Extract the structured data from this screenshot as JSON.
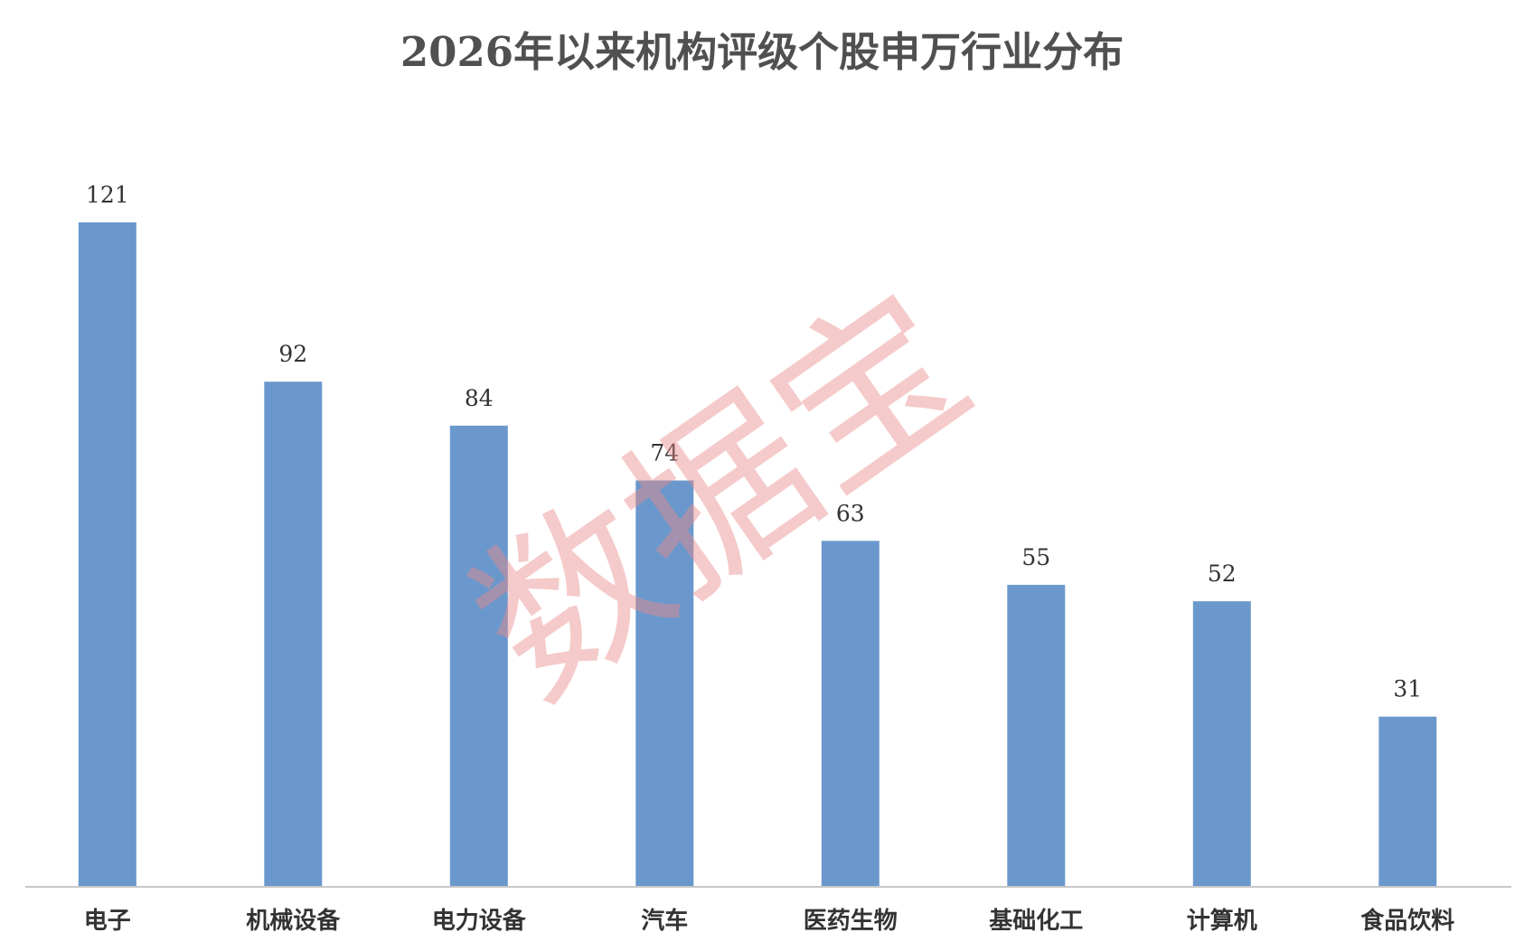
{
  "chart_data": {
    "type": "bar",
    "title": "2026年以来机构评级个股申万行业分布",
    "categories": [
      "电子",
      "机械设备",
      "电力设备",
      "汽车",
      "医药生物",
      "基础化工",
      "计算机",
      "食品饮料"
    ],
    "values": [
      121,
      92,
      84,
      74,
      63,
      55,
      52,
      31
    ],
    "xlabel": "",
    "ylabel": "",
    "ylim": [
      0,
      121
    ],
    "grid": false,
    "legend": "none",
    "data_labels": true,
    "bar_color": "#6b98cc",
    "axis_color": "#c8c8c8"
  },
  "watermark": {
    "text": "数据宝",
    "color": "#e88a8a"
  }
}
